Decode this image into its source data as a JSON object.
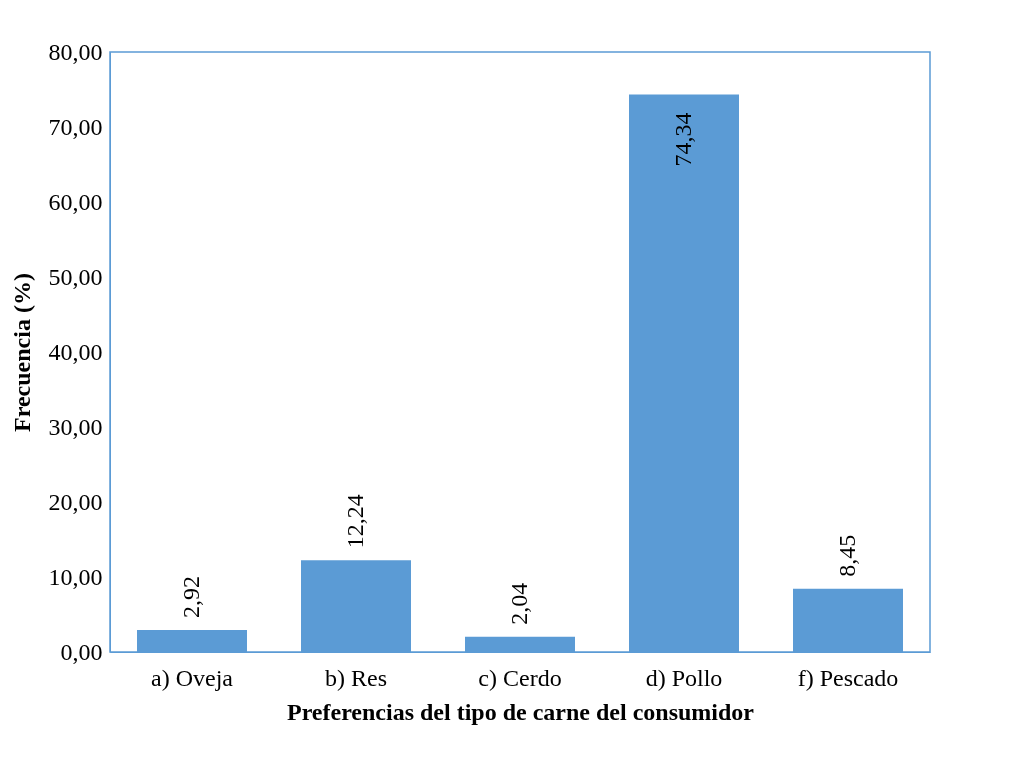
{
  "chart_data": {
    "type": "bar",
    "xlabel": "Preferencias del tipo de carne del consumidor",
    "ylabel": "Frecuencia (%)",
    "categories": [
      "a) Oveja",
      "b) Res",
      "c) Cerdo",
      "d) Pollo",
      "f) Pescado"
    ],
    "values": [
      2.92,
      12.24,
      2.04,
      74.34,
      8.45
    ],
    "value_labels": [
      "2,92",
      "12,24",
      "2,04",
      "74,34",
      "8,45"
    ],
    "color": "#5b9bd5",
    "ylim": [
      0,
      80
    ],
    "yticks": [
      {
        "value": 0,
        "label": "0,00"
      },
      {
        "value": 10,
        "label": "10,00"
      },
      {
        "value": 20,
        "label": "20,00"
      },
      {
        "value": 30,
        "label": "30,00"
      },
      {
        "value": 40,
        "label": "40,00"
      },
      {
        "value": 50,
        "label": "50,00"
      },
      {
        "value": 60,
        "label": "60,00"
      },
      {
        "value": 70,
        "label": "70,00"
      },
      {
        "value": 80,
        "label": "80,00"
      }
    ],
    "grid": false
  }
}
